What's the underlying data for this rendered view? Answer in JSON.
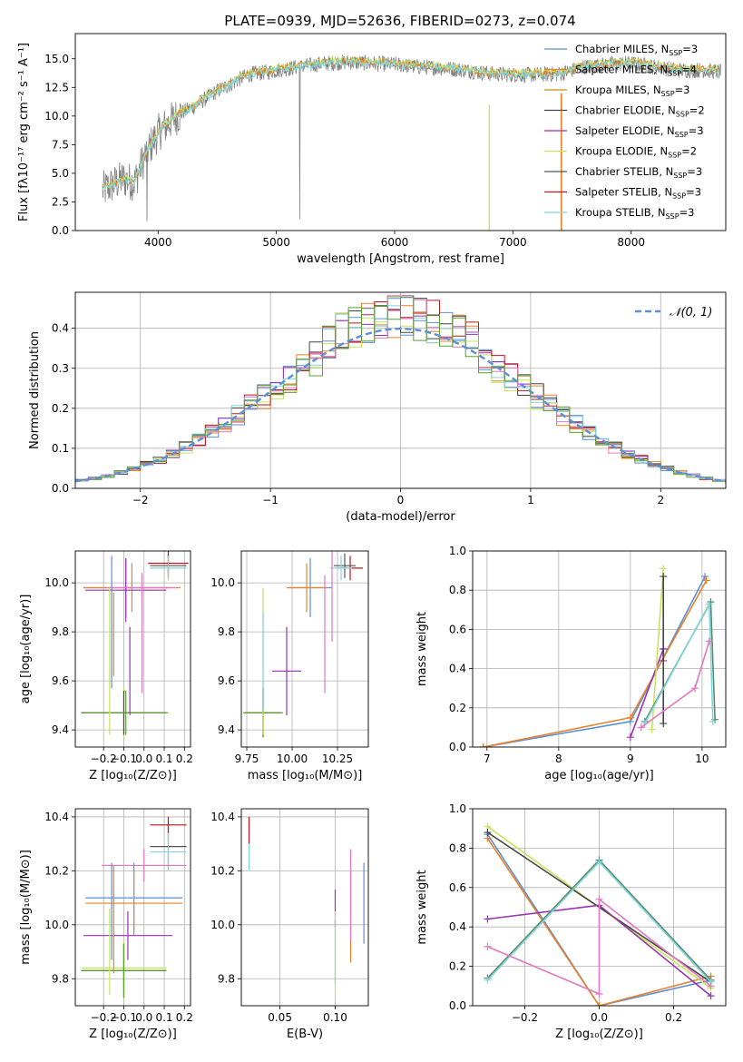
{
  "title": "PLATE=0939, MJD=52636, FIBERID=0273, z=0.074",
  "colors": {
    "chabrier_miles": "#5b8fd6",
    "salpeter_miles": "#e8822a",
    "kroupa_miles": "#c98a1a",
    "chabrier_elodie": "#444444",
    "salpeter_elodie": "#9a32b0",
    "kroupa_elodie": "#c8e35a",
    "chabrier_stelib": "#555555",
    "salpeter_stelib": "#c0161c",
    "kroupa_stelib": "#7fd6dc",
    "gray_data": "#808080",
    "pink": "#e377c2",
    "gauss": "#5b8fd6"
  },
  "chart_data": [
    {
      "id": "spectrum",
      "type": "line",
      "xlabel": "wavelength [Angstrom, rest frame]",
      "ylabel": "Flux [fλ10⁻¹⁷ erg cm⁻² s⁻¹ A⁻¹]",
      "xlim": [
        3300,
        8800
      ],
      "ylim": [
        0,
        17.2
      ],
      "xticks": [
        4000,
        5000,
        6000,
        7000,
        8000
      ],
      "yticks": [
        0.0,
        2.5,
        5.0,
        7.5,
        10.0,
        12.5,
        15.0
      ],
      "grid": false,
      "legend_position": "upper-right",
      "legend": [
        {
          "label": "Chabrier MILES, N",
          "sub": "SSP",
          "value": "=3",
          "color": "#5b8fd6"
        },
        {
          "label": "Salpeter MILES, N",
          "sub": "SSP",
          "value": "=4",
          "color": "#e8822a"
        },
        {
          "label": "Kroupa MILES, N",
          "sub": "SSP",
          "value": "=3",
          "color": "#c98a1a"
        },
        {
          "label": "Chabrier ELODIE, N",
          "sub": "SSP",
          "value": "=2",
          "color": "#444444"
        },
        {
          "label": "Salpeter ELODIE, N",
          "sub": "SSP",
          "value": "=3",
          "color": "#9a32b0"
        },
        {
          "label": "Kroupa ELODIE, N",
          "sub": "SSP",
          "value": "=2",
          "color": "#c8e35a"
        },
        {
          "label": "Chabrier STELIB, N",
          "sub": "SSP",
          "value": "=3",
          "color": "#555555"
        },
        {
          "label": "Salpeter STELIB, N",
          "sub": "SSP",
          "value": "=3",
          "color": "#c0161c"
        },
        {
          "label": "Kroupa STELIB, N",
          "sub": "SSP",
          "value": "=3",
          "color": "#7fd6dc"
        }
      ],
      "continuum": {
        "x": [
          3530,
          3600,
          3700,
          3800,
          3900,
          4000,
          4100,
          4200,
          4300,
          4400,
          4500,
          4600,
          4700,
          4800,
          4900,
          5000,
          5200,
          5400,
          5600,
          5800,
          6000,
          6200,
          6400,
          6600,
          6800,
          7000,
          7200,
          7400,
          7600,
          7800,
          8000,
          8200,
          8400,
          8600,
          8800
        ],
        "y": [
          3.5,
          3.9,
          4.5,
          4.2,
          6.8,
          8.5,
          9.5,
          10.3,
          10.8,
          11.5,
          12.2,
          12.7,
          13.3,
          13.7,
          13.8,
          14.0,
          14.3,
          14.6,
          14.7,
          14.6,
          14.5,
          14.3,
          14.2,
          14.0,
          13.7,
          13.6,
          13.6,
          13.7,
          14.3,
          14.5,
          14.6,
          14.3,
          14.0,
          14.0,
          13.8
        ]
      }
    },
    {
      "id": "residuals",
      "type": "histogram",
      "xlabel": "(data-model)/error",
      "ylabel": "Normed distribution",
      "xlim": [
        -2.5,
        2.5
      ],
      "ylim": [
        0,
        0.49
      ],
      "xticks": [
        -2,
        -1,
        0,
        1,
        2
      ],
      "yticks": [
        0.0,
        0.1,
        0.2,
        0.3,
        0.4
      ],
      "grid": true,
      "legend_label": "𝒩(0, 1)",
      "legend_position": "upper-right",
      "bin_width": 0.1
    },
    {
      "id": "age-vs-Z",
      "type": "errorbar",
      "xlabel": "Z [log₁₀(Z/Z⊙)]",
      "ylabel": "age  [log₁₀(age/yr)]",
      "xlim": [
        -0.34,
        0.23
      ],
      "ylim": [
        9.33,
        10.13
      ],
      "xticks": [
        -0.2,
        -0.1,
        0.0,
        0.1,
        0.2
      ],
      "yticks": [
        9.4,
        9.6,
        9.8,
        10.0
      ],
      "grid": true,
      "points": [
        {
          "x": -0.09,
          "y": 9.98,
          "xerr": 0.21,
          "yerr": 0.12,
          "color": "#5b8fd6"
        },
        {
          "x": -0.06,
          "y": 9.98,
          "xerr": 0.24,
          "yerr": 0.1,
          "color": "#e8822a"
        },
        {
          "x": -0.09,
          "y": 9.97,
          "xerr": 0.2,
          "yerr": 0.13,
          "color": "#9a32b0"
        },
        {
          "x": 0.12,
          "y": 10.07,
          "xerr": 0.09,
          "yerr": 0.05,
          "color": "#555555"
        },
        {
          "x": 0.12,
          "y": 10.08,
          "xerr": 0.1,
          "yerr": 0.05,
          "color": "#c0161c"
        },
        {
          "x": 0.12,
          "y": 10.06,
          "xerr": 0.09,
          "yerr": 0.05,
          "color": "#7fd6dc"
        },
        {
          "x": -0.01,
          "y": 9.98,
          "xerr": 0.17,
          "yerr": 0.06,
          "color": "#e377c2"
        },
        {
          "x": -0.1,
          "y": 9.47,
          "xerr": 0.21,
          "yerr": 0.1,
          "color": "#c8e35a"
        },
        {
          "x": -0.1,
          "y": 9.47,
          "xerr": 0.21,
          "yerr": 0.09,
          "color": "#444444"
        },
        {
          "x": -0.09,
          "y": 9.47,
          "xerr": 0.21,
          "yerr": 0.09,
          "color": "#5aa02c"
        },
        {
          "x": -0.07,
          "y": 9.64,
          "yerr": 0.18,
          "color": "#9a32b0"
        },
        {
          "x": -0.17,
          "y": 9.68,
          "yerr": 0.3,
          "color": "#c8e35a"
        },
        {
          "x": -0.15,
          "y": 9.79,
          "yerr": 0.17,
          "color": "#e8822a"
        },
        {
          "x": -0.16,
          "y": 9.84,
          "yerr": 0.27,
          "color": "#5b8fd6"
        },
        {
          "x": -0.01,
          "y": 9.79,
          "yerr": 0.24,
          "color": "#e377c2"
        }
      ]
    },
    {
      "id": "age-vs-mass",
      "type": "errorbar",
      "xlabel": "mass [log₁₀(M/M⊙)]",
      "ylabel": "",
      "xlim": [
        9.72,
        10.42
      ],
      "ylim": [
        9.33,
        10.13
      ],
      "xticks": [
        9.75,
        10.0,
        10.25
      ],
      "yticks": [
        9.4,
        9.6,
        9.8,
        10.0
      ],
      "grid": true,
      "points": [
        {
          "x": 10.1,
          "y": 9.98,
          "xerr": 0.12,
          "yerr": 0.12,
          "color": "#5b8fd6"
        },
        {
          "x": 10.08,
          "y": 9.98,
          "xerr": 0.11,
          "yerr": 0.1,
          "color": "#e8822a"
        },
        {
          "x": 10.32,
          "y": 10.06,
          "xerr": 0.07,
          "yerr": 0.05,
          "color": "#c0161c"
        },
        {
          "x": 10.29,
          "y": 10.07,
          "xerr": 0.06,
          "yerr": 0.05,
          "color": "#555555"
        },
        {
          "x": 10.27,
          "y": 10.06,
          "xerr": 0.06,
          "yerr": 0.05,
          "color": "#7fd6dc"
        },
        {
          "x": 10.22,
          "y": 9.98,
          "yerr": 0.22,
          "color": "#e377c2"
        },
        {
          "x": 9.84,
          "y": 9.47,
          "xerr": 0.1,
          "yerr": 0.1,
          "color": "#c8e35a"
        },
        {
          "x": 9.84,
          "y": 9.47,
          "xerr": 0.1,
          "yerr": 0.1,
          "color": "#444444"
        },
        {
          "x": 9.84,
          "y": 9.47,
          "xerr": 0.11,
          "yerr": 0.1,
          "color": "#5aa02c"
        },
        {
          "x": 9.97,
          "y": 9.64,
          "xerr": 0.08,
          "yerr": 0.18,
          "color": "#9a32b0"
        },
        {
          "x": 9.84,
          "y": 9.68,
          "yerr": 0.3,
          "color": "#c8e35a"
        },
        {
          "x": 9.84,
          "y": 9.68,
          "yerr": 0.2,
          "color": "#7fd6dc"
        },
        {
          "x": 10.18,
          "y": 9.79,
          "yerr": 0.24,
          "color": "#e377c2"
        }
      ]
    },
    {
      "id": "weight-vs-age",
      "type": "line",
      "xlabel": "age  [log₁₀(age/yr)]",
      "ylabel": "mass weight",
      "xlim": [
        6.8,
        10.33
      ],
      "ylim": [
        0,
        1.0
      ],
      "xticks": [
        7,
        8,
        9,
        10
      ],
      "yticks": [
        0.0,
        0.2,
        0.4,
        0.6,
        0.8,
        1.0
      ],
      "grid": true,
      "series": [
        {
          "color": "#5b8fd6",
          "x": [
            6.95,
            9.0,
            10.04
          ],
          "y": [
            0.0,
            0.13,
            0.87
          ]
        },
        {
          "color": "#e8822a",
          "x": [
            6.95,
            9.0,
            10.06
          ],
          "y": [
            0.0,
            0.15,
            0.85
          ]
        },
        {
          "color": "#9a32b0",
          "x": [
            9.0,
            9.46
          ],
          "y": [
            0.05,
            0.5
          ]
        },
        {
          "color": "#9a32b0",
          "x": [
            9.46,
            9.46
          ],
          "y": [
            0.5,
            0.44
          ]
        },
        {
          "color": "#c8e35a",
          "x": [
            9.3,
            9.46
          ],
          "y": [
            0.09,
            0.91
          ]
        },
        {
          "color": "#444444",
          "x": [
            9.46,
            9.46
          ],
          "y": [
            0.12,
            0.87
          ]
        },
        {
          "color": "#5a8a6a",
          "x": [
            9.2,
            10.12,
            10.18
          ],
          "y": [
            0.13,
            0.74,
            0.14
          ]
        },
        {
          "color": "#7fd6dc",
          "x": [
            9.2,
            10.1,
            10.15
          ],
          "y": [
            0.12,
            0.73,
            0.13
          ]
        },
        {
          "color": "#e377c2",
          "x": [
            9.15,
            9.9,
            10.1
          ],
          "y": [
            0.1,
            0.3,
            0.54
          ]
        }
      ]
    },
    {
      "id": "mass-vs-Z",
      "type": "errorbar",
      "xlabel": "Z [log₁₀(Z/Z⊙)]",
      "ylabel": "mass [log₁₀(M/M⊙)]",
      "xlim": [
        -0.34,
        0.23
      ],
      "ylim": [
        9.7,
        10.43
      ],
      "xticks": [
        -0.2,
        -0.1,
        0.0,
        0.1,
        0.2
      ],
      "yticks": [
        9.8,
        10.0,
        10.2,
        10.4
      ],
      "grid": true,
      "points": [
        {
          "x": 0.12,
          "y": 10.37,
          "xerr": 0.09,
          "yerr": 0.03,
          "color": "#c0161c"
        },
        {
          "x": 0.12,
          "y": 10.29,
          "xerr": 0.09,
          "yerr": 0.08,
          "color": "#555555"
        },
        {
          "x": 0.12,
          "y": 10.27,
          "xerr": 0.09,
          "yerr": 0.07,
          "color": "#7fd6dc"
        },
        {
          "x": 0.0,
          "y": 10.22,
          "xerr": 0.21,
          "yerr": 0.06,
          "color": "#e377c2"
        },
        {
          "x": -0.05,
          "y": 10.1,
          "xerr": 0.24,
          "yerr": 0.13,
          "color": "#5b8fd6"
        },
        {
          "x": -0.05,
          "y": 10.08,
          "xerr": 0.24,
          "yerr": 0.12,
          "color": "#e8822a"
        },
        {
          "x": -0.08,
          "y": 9.96,
          "xerr": 0.22,
          "yerr": 0.09,
          "color": "#9a32b0"
        },
        {
          "x": -0.1,
          "y": 9.84,
          "xerr": 0.21,
          "yerr": 0.1,
          "color": "#c8e35a"
        },
        {
          "x": -0.1,
          "y": 9.83,
          "xerr": 0.21,
          "yerr": 0.1,
          "color": "#444444"
        },
        {
          "x": -0.1,
          "y": 9.83,
          "xerr": 0.21,
          "yerr": 0.1,
          "color": "#5aa02c"
        },
        {
          "x": -0.17,
          "y": 9.9,
          "yerr": 0.16,
          "color": "#c8e35a"
        },
        {
          "x": -0.15,
          "y": 10.02,
          "yerr": 0.2,
          "color": "#e8822a"
        },
        {
          "x": -0.16,
          "y": 10.05,
          "yerr": 0.18,
          "color": "#5b8fd6"
        }
      ]
    },
    {
      "id": "mass-vs-ebv",
      "type": "errorbar",
      "xlabel": "E(B-V)",
      "ylabel": "",
      "xlim": [
        0.015,
        0.13
      ],
      "ylim": [
        9.7,
        10.43
      ],
      "xticks": [
        0.05,
        0.1
      ],
      "yticks": [
        9.8,
        10.0,
        10.2,
        10.4
      ],
      "grid": true,
      "points": [
        {
          "x": 0.022,
          "y": 10.35,
          "yerr": 0.05,
          "color": "#c0161c"
        },
        {
          "x": 0.022,
          "y": 10.25,
          "yerr": 0.05,
          "color": "#7fd6dc"
        },
        {
          "x": 0.1,
          "y": 10.06,
          "yerr": 0.07,
          "color": "#9a32b0"
        },
        {
          "x": 0.1,
          "y": 9.9,
          "yerr": 0.15,
          "color": "#c8e35a"
        },
        {
          "x": 0.1,
          "y": 9.9,
          "yerr": 0.12,
          "color": "#7fd6dc"
        },
        {
          "x": 0.114,
          "y": 10.03,
          "yerr": 0.17,
          "color": "#e8822a"
        },
        {
          "x": 0.114,
          "y": 10.11,
          "yerr": 0.17,
          "color": "#e377c2"
        },
        {
          "x": 0.126,
          "y": 10.08,
          "yerr": 0.15,
          "color": "#5b8fd6"
        }
      ]
    },
    {
      "id": "weight-vs-Z",
      "type": "line",
      "xlabel": "Z [log₁₀(Z/Z⊙)]",
      "ylabel": "mass weight",
      "xlim": [
        -0.34,
        0.34
      ],
      "ylim": [
        0,
        1.0
      ],
      "xticks": [
        -0.2,
        0.0,
        0.2
      ],
      "yticks": [
        0.0,
        0.2,
        0.4,
        0.6,
        0.8,
        1.0
      ],
      "grid": true,
      "series": [
        {
          "color": "#5b8fd6",
          "x": [
            -0.3,
            0.0,
            0.3
          ],
          "y": [
            0.87,
            0.0,
            0.13
          ]
        },
        {
          "color": "#e8822a",
          "x": [
            -0.3,
            0.0,
            0.3
          ],
          "y": [
            0.85,
            0.0,
            0.15
          ]
        },
        {
          "color": "#c8e35a",
          "x": [
            -0.3,
            0.3
          ],
          "y": [
            0.91,
            0.09
          ]
        },
        {
          "color": "#444444",
          "x": [
            -0.3,
            0.3
          ],
          "y": [
            0.88,
            0.12
          ]
        },
        {
          "color": "#9a32b0",
          "x": [
            -0.3,
            0.0,
            0.3
          ],
          "y": [
            0.44,
            0.51,
            0.05
          ]
        },
        {
          "color": "#5a8a6a",
          "x": [
            -0.3,
            0.0,
            0.3
          ],
          "y": [
            0.14,
            0.74,
            0.13
          ]
        },
        {
          "color": "#7fd6dc",
          "x": [
            -0.3,
            0.0,
            0.3
          ],
          "y": [
            0.13,
            0.73,
            0.12
          ]
        },
        {
          "color": "#e377c2",
          "x": [
            -0.3,
            0.0,
            0.0,
            0.3
          ],
          "y": [
            0.3,
            0.06,
            0.54,
            0.1
          ]
        }
      ]
    }
  ]
}
